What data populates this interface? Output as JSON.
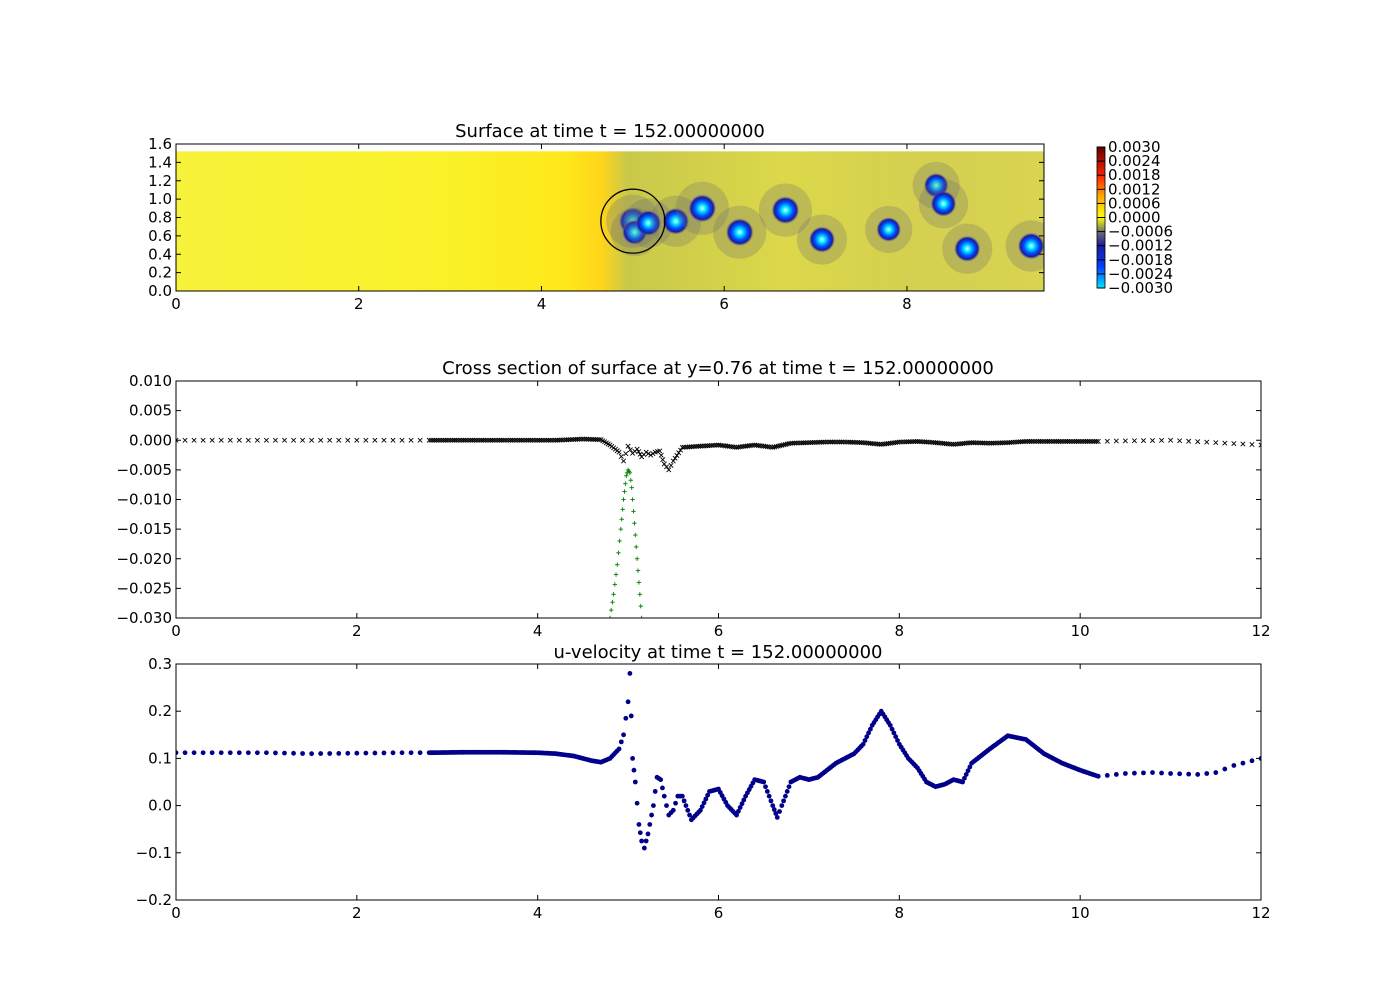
{
  "chart_data": [
    {
      "type": "heatmap",
      "title": "Surface at time t =   152.00000000",
      "xlim": [
        0,
        9.5
      ],
      "ylim": [
        0,
        1.6
      ],
      "x_ticks": [
        "0",
        "2",
        "4",
        "6",
        "8"
      ],
      "x_tick_values": [
        0,
        2,
        4,
        6,
        8
      ],
      "y_ticks": [
        "0.0",
        "0.2",
        "0.4",
        "0.6",
        "0.8",
        "1.0",
        "1.2",
        "1.4",
        "1.6"
      ],
      "y_tick_values": [
        0,
        0.2,
        0.4,
        0.6,
        0.8,
        1.0,
        1.2,
        1.4,
        1.6
      ],
      "domain_height": 1.52,
      "colorbar": {
        "range": [
          -0.003,
          0.003
        ],
        "ticks": [
          "0.0030",
          "0.0024",
          "0.0018",
          "0.0012",
          "0.0006",
          "0.0000",
          "−0.0006",
          "−0.0012",
          "−0.0018",
          "−0.0024",
          "−0.0030"
        ]
      },
      "circle": {
        "center": [
          5.0,
          0.76
        ],
        "radius": 0.35
      },
      "vortices": [
        {
          "x": 5.0,
          "y": 0.76,
          "value": -0.003
        },
        {
          "x": 5.02,
          "y": 0.64,
          "value": -0.0025
        },
        {
          "x": 5.17,
          "y": 0.74,
          "value": -0.0026
        },
        {
          "x": 5.47,
          "y": 0.76,
          "value": -0.0028
        },
        {
          "x": 5.76,
          "y": 0.9,
          "value": -0.003
        },
        {
          "x": 6.17,
          "y": 0.64,
          "value": -0.003
        },
        {
          "x": 6.67,
          "y": 0.88,
          "value": -0.003
        },
        {
          "x": 7.07,
          "y": 0.56,
          "value": -0.0027
        },
        {
          "x": 7.8,
          "y": 0.67,
          "value": -0.0024
        },
        {
          "x": 8.32,
          "y": 1.15,
          "value": -0.0024
        },
        {
          "x": 8.4,
          "y": 0.95,
          "value": -0.0026
        },
        {
          "x": 8.66,
          "y": 0.46,
          "value": -0.0027
        },
        {
          "x": 9.36,
          "y": 0.49,
          "value": -0.0028
        }
      ]
    },
    {
      "type": "scatter",
      "title": "Cross section of surface at y=0.76 at time t =   152.00000000",
      "xlim": [
        0,
        12
      ],
      "ylim": [
        -0.03,
        0.01
      ],
      "x_ticks": [
        "0",
        "2",
        "4",
        "6",
        "8",
        "10",
        "12"
      ],
      "x_tick_values": [
        0,
        2,
        4,
        6,
        8,
        10,
        12
      ],
      "y_ticks": [
        "0.010",
        "0.005",
        "0.000",
        "−0.005",
        "−0.010",
        "−0.015",
        "−0.020",
        "−0.025",
        "−0.030"
      ],
      "y_tick_values": [
        0.01,
        0.005,
        0,
        -0.005,
        -0.01,
        -0.015,
        -0.02,
        -0.025,
        -0.03
      ],
      "series": [
        {
          "marker": "x",
          "color": "#000000",
          "points": [
            [
              0.0,
              0.0
            ],
            [
              0.5,
              0.0
            ],
            [
              1.0,
              0.0
            ],
            [
              1.5,
              0.0
            ],
            [
              2.0,
              0.0
            ],
            [
              2.5,
              0.0
            ],
            [
              2.8,
              0.0
            ],
            [
              3.2,
              0.0
            ],
            [
              3.6,
              0.0
            ],
            [
              4.0,
              0.0
            ],
            [
              4.2,
              0.0
            ],
            [
              4.5,
              0.0002
            ],
            [
              4.7,
              0.0001
            ],
            [
              4.8,
              -0.0008
            ],
            [
              4.9,
              -0.002
            ],
            [
              4.95,
              -0.0035
            ],
            [
              5.0,
              -0.001
            ],
            [
              5.05,
              -0.0022
            ],
            [
              5.1,
              -0.0015
            ],
            [
              5.15,
              -0.0028
            ],
            [
              5.2,
              -0.002
            ],
            [
              5.25,
              -0.0025
            ],
            [
              5.3,
              -0.002
            ],
            [
              5.35,
              -0.0018
            ],
            [
              5.4,
              -0.004
            ],
            [
              5.45,
              -0.005
            ],
            [
              5.5,
              -0.0035
            ],
            [
              5.6,
              -0.0012
            ],
            [
              5.8,
              -0.001
            ],
            [
              6.0,
              -0.0008
            ],
            [
              6.2,
              -0.0012
            ],
            [
              6.4,
              -0.0008
            ],
            [
              6.6,
              -0.0012
            ],
            [
              6.8,
              -0.0005
            ],
            [
              7.0,
              -0.0004
            ],
            [
              7.2,
              -0.0003
            ],
            [
              7.4,
              -0.0003
            ],
            [
              7.6,
              -0.0004
            ],
            [
              7.8,
              -0.0007
            ],
            [
              8.0,
              -0.0003
            ],
            [
              8.2,
              -0.0002
            ],
            [
              8.4,
              -0.0004
            ],
            [
              8.6,
              -0.0007
            ],
            [
              8.8,
              -0.0004
            ],
            [
              9.0,
              -0.0005
            ],
            [
              9.2,
              -0.0004
            ],
            [
              9.4,
              -0.0002
            ],
            [
              9.6,
              -0.0002
            ],
            [
              9.8,
              -0.0002
            ],
            [
              10.0,
              -0.0002
            ],
            [
              10.2,
              -0.0002
            ],
            [
              10.5,
              -0.0001
            ],
            [
              11.0,
              0.0
            ],
            [
              11.5,
              -0.0004
            ],
            [
              12.0,
              -0.0008
            ]
          ]
        },
        {
          "marker": "+",
          "color": "#008000",
          "points": [
            [
              4.8,
              -0.03
            ],
            [
              4.84,
              -0.026
            ],
            [
              4.88,
              -0.021
            ],
            [
              4.92,
              -0.015
            ],
            [
              4.95,
              -0.01
            ],
            [
              4.98,
              -0.006
            ],
            [
              5.0,
              -0.005
            ],
            [
              5.02,
              -0.0055
            ],
            [
              5.04,
              -0.008
            ],
            [
              5.06,
              -0.012
            ],
            [
              5.09,
              -0.018
            ],
            [
              5.12,
              -0.024
            ],
            [
              5.15,
              -0.03
            ]
          ]
        }
      ]
    },
    {
      "type": "scatter",
      "title": "u-velocity at time t =   152.00000000",
      "xlim": [
        0,
        12
      ],
      "ylim": [
        -0.2,
        0.3
      ],
      "x_ticks": [
        "0",
        "2",
        "4",
        "6",
        "8",
        "10",
        "12"
      ],
      "x_tick_values": [
        0,
        2,
        4,
        6,
        8,
        10,
        12
      ],
      "y_ticks": [
        "0.3",
        "0.2",
        "0.1",
        "0.0",
        "−0.1",
        "−0.2"
      ],
      "y_tick_values": [
        0.3,
        0.2,
        0.1,
        0.0,
        -0.1,
        -0.2
      ],
      "series": [
        {
          "marker": "o",
          "color": "#00008b",
          "points": [
            [
              0.0,
              0.112
            ],
            [
              0.5,
              0.112
            ],
            [
              1.0,
              0.112
            ],
            [
              1.5,
              0.11
            ],
            [
              2.0,
              0.111
            ],
            [
              2.5,
              0.112
            ],
            [
              2.8,
              0.112
            ],
            [
              3.2,
              0.113
            ],
            [
              3.6,
              0.113
            ],
            [
              4.0,
              0.112
            ],
            [
              4.2,
              0.11
            ],
            [
              4.4,
              0.105
            ],
            [
              4.6,
              0.095
            ],
            [
              4.7,
              0.092
            ],
            [
              4.8,
              0.1
            ],
            [
              4.9,
              0.12
            ],
            [
              4.95,
              0.15
            ],
            [
              5.0,
              0.22
            ],
            [
              5.02,
              0.28
            ],
            [
              5.05,
              0.1
            ],
            [
              5.08,
              0.05
            ],
            [
              5.12,
              -0.04
            ],
            [
              5.15,
              -0.075
            ],
            [
              5.18,
              -0.09
            ],
            [
              5.22,
              -0.06
            ],
            [
              5.28,
              0.0
            ],
            [
              5.32,
              0.06
            ],
            [
              5.36,
              0.055
            ],
            [
              5.4,
              0.02
            ],
            [
              5.45,
              -0.02
            ],
            [
              5.5,
              -0.01
            ],
            [
              5.55,
              0.02
            ],
            [
              5.6,
              0.02
            ],
            [
              5.7,
              -0.03
            ],
            [
              5.8,
              -0.01
            ],
            [
              5.9,
              0.03
            ],
            [
              6.0,
              0.035
            ],
            [
              6.1,
              0.0
            ],
            [
              6.2,
              -0.02
            ],
            [
              6.3,
              0.02
            ],
            [
              6.4,
              0.055
            ],
            [
              6.5,
              0.05
            ],
            [
              6.6,
              0.0
            ],
            [
              6.65,
              -0.025
            ],
            [
              6.7,
              0.0
            ],
            [
              6.8,
              0.05
            ],
            [
              6.9,
              0.06
            ],
            [
              7.0,
              0.055
            ],
            [
              7.1,
              0.06
            ],
            [
              7.3,
              0.09
            ],
            [
              7.5,
              0.11
            ],
            [
              7.6,
              0.13
            ],
            [
              7.7,
              0.17
            ],
            [
              7.8,
              0.2
            ],
            [
              7.9,
              0.17
            ],
            [
              8.0,
              0.13
            ],
            [
              8.1,
              0.1
            ],
            [
              8.2,
              0.08
            ],
            [
              8.3,
              0.05
            ],
            [
              8.4,
              0.04
            ],
            [
              8.5,
              0.045
            ],
            [
              8.6,
              0.055
            ],
            [
              8.7,
              0.05
            ],
            [
              8.8,
              0.09
            ],
            [
              9.0,
              0.12
            ],
            [
              9.2,
              0.148
            ],
            [
              9.4,
              0.14
            ],
            [
              9.6,
              0.11
            ],
            [
              9.8,
              0.09
            ],
            [
              10.0,
              0.075
            ],
            [
              10.2,
              0.062
            ],
            [
              10.5,
              0.068
            ],
            [
              10.8,
              0.07
            ],
            [
              11.0,
              0.068
            ],
            [
              11.3,
              0.066
            ],
            [
              11.5,
              0.07
            ],
            [
              11.7,
              0.085
            ],
            [
              12.0,
              0.1
            ]
          ]
        }
      ]
    }
  ]
}
